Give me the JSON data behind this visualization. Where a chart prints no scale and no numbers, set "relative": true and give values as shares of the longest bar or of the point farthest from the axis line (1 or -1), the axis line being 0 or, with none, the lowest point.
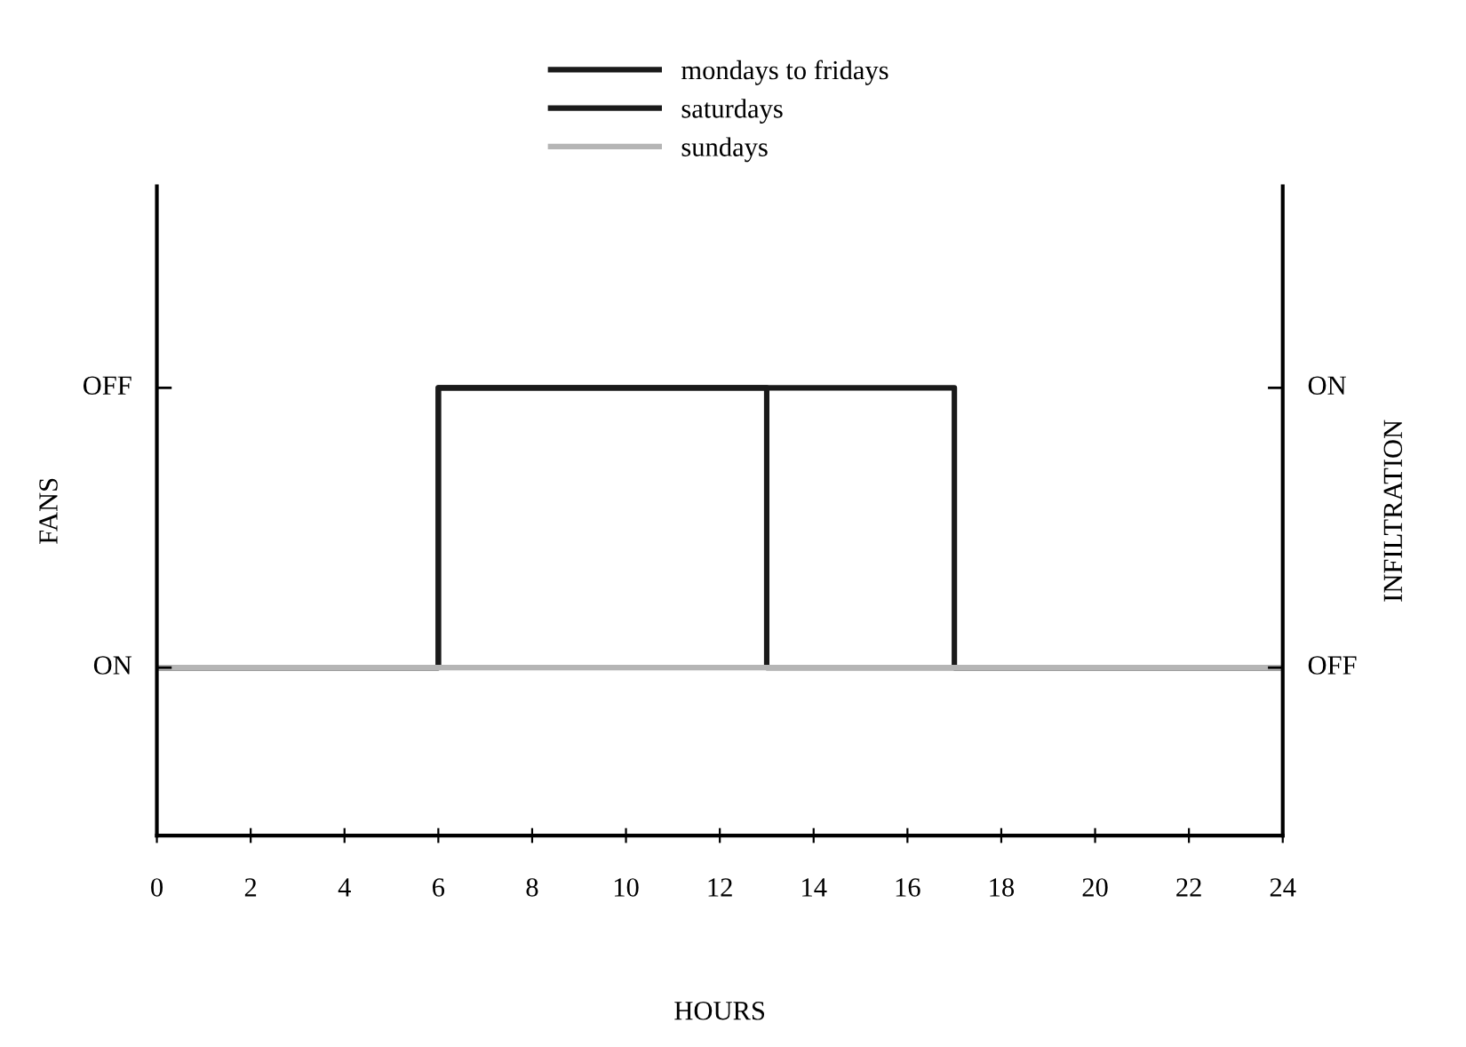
{
  "chart_data": {
    "type": "step",
    "relative": true,
    "xlabel": "HOURS",
    "ylabel": "FANS",
    "y2label": "INFILTRATION",
    "series": [
      {
        "name": "mondays to fridays",
        "color": "#1a1a1a",
        "x": [
          0,
          6,
          17,
          24
        ],
        "values": [
          0.375,
          1,
          0.375,
          0.375
        ]
      },
      {
        "name": "saturdays",
        "color": "#1a1a1a",
        "x": [
          0,
          6,
          13,
          24
        ],
        "values": [
          0.375,
          1,
          0.375,
          0.375
        ]
      },
      {
        "name": "sundays",
        "color": "#b5b5b5",
        "x": [
          0,
          24
        ],
        "values": [
          0.375,
          0.375
        ]
      }
    ],
    "xlim": [
      0,
      24
    ],
    "xticks": [
      0,
      2,
      4,
      6,
      8,
      10,
      12,
      14,
      16,
      18,
      20,
      22,
      24
    ],
    "annotations": [
      "ON",
      "OFF",
      "OFF",
      "ON"
    ],
    "grid": false,
    "legend": "top",
    "marker": "none",
    "line_style": "solid"
  }
}
